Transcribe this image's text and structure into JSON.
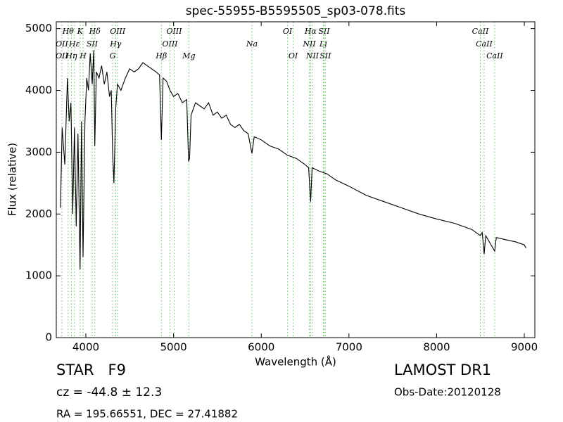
{
  "chart_data": {
    "type": "line",
    "title": "spec-55955-B5595505_sp03-078.fits",
    "x_label": "Wavelength (Å)",
    "y_label": "Flux (relative)",
    "xlim": [
      3663,
      9120
    ],
    "ylim": [
      0,
      5110
    ],
    "xticks": [
      4000,
      5000,
      6000,
      7000,
      8000,
      9000
    ],
    "yticks": [
      0,
      1000,
      2000,
      3000,
      4000,
      5000
    ],
    "color": "#000000",
    "line_color": "#66bb66",
    "x": [
      3710,
      3730,
      3760,
      3790,
      3810,
      3830,
      3850,
      3870,
      3890,
      3910,
      3934,
      3950,
      3968,
      3990,
      4010,
      4030,
      4050,
      4072,
      4090,
      4102,
      4120,
      4150,
      4180,
      4210,
      4240,
      4270,
      4290,
      4305,
      4320,
      4340,
      4360,
      4400,
      4450,
      4500,
      4550,
      4600,
      4650,
      4700,
      4750,
      4800,
      4840,
      4861,
      4880,
      4920,
      4960,
      5000,
      5050,
      5100,
      5150,
      5172,
      5183,
      5200,
      5250,
      5300,
      5350,
      5400,
      5450,
      5500,
      5550,
      5600,
      5650,
      5700,
      5750,
      5800,
      5850,
      5894,
      5920,
      6000,
      6100,
      6200,
      6300,
      6400,
      6500,
      6540,
      6563,
      6580,
      6650,
      6750,
      6850,
      7000,
      7200,
      7400,
      7600,
      7800,
      8000,
      8200,
      8400,
      8498,
      8520,
      8542,
      8560,
      8662,
      8680,
      8800,
      8900,
      9000,
      9020
    ],
    "values": [
      2100,
      3400,
      2800,
      4200,
      3500,
      3800,
      2000,
      3400,
      1800,
      3300,
      1100,
      3500,
      1300,
      3500,
      4200,
      4000,
      4600,
      4100,
      4650,
      3100,
      4300,
      4200,
      4400,
      4100,
      4300,
      3900,
      4000,
      3000,
      2500,
      3700,
      4100,
      4000,
      4200,
      4350,
      4300,
      4350,
      4450,
      4400,
      4350,
      4300,
      4250,
      3200,
      4200,
      4150,
      4000,
      3900,
      3950,
      3800,
      3850,
      2850,
      2900,
      3600,
      3800,
      3750,
      3700,
      3800,
      3600,
      3650,
      3550,
      3600,
      3450,
      3400,
      3450,
      3350,
      3300,
      2980,
      3250,
      3200,
      3100,
      3050,
      2950,
      2900,
      2800,
      2750,
      2200,
      2750,
      2700,
      2650,
      2550,
      2450,
      2300,
      2200,
      2100,
      2000,
      1920,
      1850,
      1750,
      1650,
      1700,
      1350,
      1650,
      1400,
      1620,
      1580,
      1550,
      1500,
      1450
    ],
    "line_labels": [
      [
        {
          "x": 3798,
          "label": "Hθ"
        },
        {
          "x": 3934,
          "label": "K"
        },
        {
          "x": 4102,
          "label": "Hδ"
        },
        {
          "x": 4363,
          "label": "OIII"
        },
        {
          "x": 5007,
          "label": "OIII"
        },
        {
          "x": 6300,
          "label": "OI"
        },
        {
          "x": 6563,
          "label": "Hα"
        },
        {
          "x": 6716,
          "label": "SII"
        },
        {
          "x": 8498,
          "label": "CaII"
        }
      ],
      [
        {
          "x": 3727,
          "label": "OII"
        },
        {
          "x": 3870,
          "label": "Hε"
        },
        {
          "x": 4072,
          "label": "SII"
        },
        {
          "x": 4340,
          "label": "Hγ"
        },
        {
          "x": 4959,
          "label": "OIII"
        },
        {
          "x": 5894,
          "label": "Na"
        },
        {
          "x": 6548,
          "label": "NII"
        },
        {
          "x": 6708,
          "label": "Li"
        },
        {
          "x": 8542,
          "label": "CaII"
        }
      ],
      [
        {
          "x": 3727,
          "label": "OII"
        },
        {
          "x": 3835,
          "label": "Hη"
        },
        {
          "x": 3968,
          "label": "H"
        },
        {
          "x": 4305,
          "label": "G"
        },
        {
          "x": 4861,
          "label": "Hβ"
        },
        {
          "x": 5175,
          "label": "Mg"
        },
        {
          "x": 6364,
          "label": "OI"
        },
        {
          "x": 6583,
          "label": "NII"
        },
        {
          "x": 6731,
          "label": "SII"
        },
        {
          "x": 8662,
          "label": "CaII"
        }
      ]
    ]
  },
  "info": {
    "object": "STAR   F9",
    "redshift": "cz = -44.8 ± 12.3",
    "coords": "RA = 195.66551, DEC = 27.41882",
    "survey": "LAMOST DR1",
    "date": "Obs-Date:20120128"
  }
}
